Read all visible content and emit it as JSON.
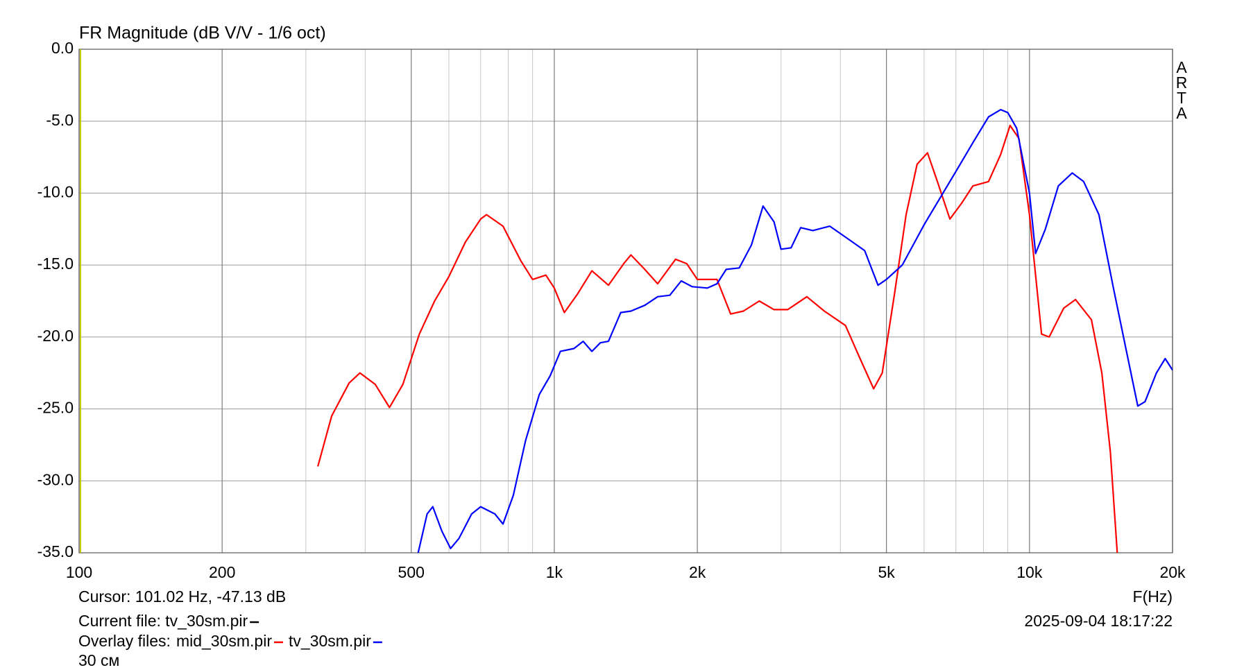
{
  "chart_data": {
    "type": "line",
    "title": "FR Magnitude (dB V/V - 1/6 oct)",
    "watermark": "ARTA",
    "x_label": "F(Hz)",
    "log_x": true,
    "xlim": [
      100,
      20000
    ],
    "xticks": [
      100,
      200,
      500,
      {
        "value": 1000,
        "label": "1k"
      },
      {
        "value": 2000,
        "label": "2k"
      },
      {
        "value": 5000,
        "label": "5k"
      },
      {
        "value": 10000,
        "label": "10k"
      },
      {
        "value": 20000,
        "label": "20k"
      }
    ],
    "x_minor_grid": [
      300,
      400,
      600,
      700,
      800,
      900,
      3000,
      4000,
      6000,
      7000,
      8000,
      9000
    ],
    "ylim": [
      -35,
      0
    ],
    "yticks": [
      {
        "value": 0,
        "label": "0.0"
      },
      {
        "value": -5,
        "label": "-5.0"
      },
      {
        "value": -10,
        "label": "-10.0"
      },
      {
        "value": -15,
        "label": "-15.0"
      },
      {
        "value": -20,
        "label": "-20.0"
      },
      {
        "value": -25,
        "label": "-25.0"
      },
      {
        "value": -30,
        "label": "-30.0"
      },
      {
        "value": -35,
        "label": "-35.0"
      }
    ],
    "grid": true,
    "cursor_text": "Cursor: 101.02 Hz, -47.13 dB",
    "current_file": "Current file: tv_30sm.pir",
    "overlay_label": "Overlay files:",
    "note": "30 см",
    "timestamp": "2025-09-04  18:17:22",
    "series": [
      {
        "name": "mid_30sm.pir",
        "color": "#ff0000",
        "x": [
          318,
          340,
          370,
          390,
          420,
          450,
          480,
          520,
          560,
          600,
          650,
          700,
          720,
          780,
          850,
          900,
          960,
          1000,
          1050,
          1120,
          1200,
          1300,
          1400,
          1450,
          1550,
          1650,
          1800,
          1900,
          2000,
          2200,
          2350,
          2500,
          2700,
          2900,
          3100,
          3400,
          3700,
          4100,
          4400,
          4700,
          4900,
          5200,
          5500,
          5800,
          6100,
          6400,
          6800,
          7200,
          7600,
          8200,
          8700,
          9100,
          9500,
          10000,
          10600,
          11000,
          11800,
          12500,
          13500,
          14200,
          14800,
          15300
        ],
        "values": [
          -29.0,
          -25.5,
          -23.2,
          -22.5,
          -23.3,
          -24.9,
          -23.3,
          -19.8,
          -17.5,
          -15.8,
          -13.4,
          -11.8,
          -11.5,
          -12.3,
          -14.7,
          -16.0,
          -15.7,
          -16.6,
          -18.3,
          -17.0,
          -15.4,
          -16.4,
          -14.9,
          -14.3,
          -15.3,
          -16.3,
          -14.6,
          -14.9,
          -16.0,
          -16.0,
          -18.4,
          -18.2,
          -17.5,
          -18.1,
          -18.1,
          -17.2,
          -18.2,
          -19.2,
          -21.5,
          -23.6,
          -22.5,
          -17.0,
          -11.5,
          -8.0,
          -7.2,
          -9.2,
          -11.8,
          -10.7,
          -9.5,
          -9.2,
          -7.3,
          -5.3,
          -6.2,
          -11.5,
          -19.8,
          -20.0,
          -18.0,
          -17.4,
          -18.8,
          -22.5,
          -28.0,
          -35.0
        ]
      },
      {
        "name": "tv_30sm.pir",
        "color": "#0000ff",
        "x": [
          517,
          540,
          555,
          580,
          605,
          630,
          670,
          700,
          750,
          780,
          820,
          870,
          930,
          980,
          1030,
          1100,
          1150,
          1200,
          1250,
          1300,
          1380,
          1450,
          1550,
          1650,
          1750,
          1850,
          1950,
          2100,
          2200,
          2300,
          2450,
          2600,
          2750,
          2900,
          3000,
          3150,
          3300,
          3500,
          3800,
          4200,
          4500,
          4800,
          5000,
          5400,
          6000,
          7000,
          7600,
          8200,
          8700,
          9000,
          9400,
          10000,
          10300,
          10800,
          11500,
          12300,
          13000,
          14000,
          15000,
          16000,
          16900,
          17500,
          18500,
          19300,
          20000
        ],
        "values": [
          -35.0,
          -32.3,
          -31.8,
          -33.5,
          -34.7,
          -34.0,
          -32.3,
          -31.8,
          -32.3,
          -33.0,
          -31.0,
          -27.2,
          -24.0,
          -22.7,
          -21.0,
          -20.8,
          -20.3,
          -21.0,
          -20.4,
          -20.3,
          -18.3,
          -18.2,
          -17.8,
          -17.2,
          -17.1,
          -16.1,
          -16.5,
          -16.6,
          -16.3,
          -15.3,
          -15.2,
          -13.6,
          -10.9,
          -12.0,
          -13.9,
          -13.8,
          -12.4,
          -12.6,
          -12.3,
          -13.3,
          -14.0,
          -16.4,
          -16.0,
          -15.0,
          -12.2,
          -8.5,
          -6.5,
          -4.7,
          -4.2,
          -4.4,
          -5.5,
          -10.0,
          -14.2,
          -12.5,
          -9.5,
          -8.6,
          -9.2,
          -11.5,
          -16.5,
          -21.0,
          -24.8,
          -24.5,
          -22.5,
          -21.5,
          -22.3
        ]
      }
    ]
  }
}
